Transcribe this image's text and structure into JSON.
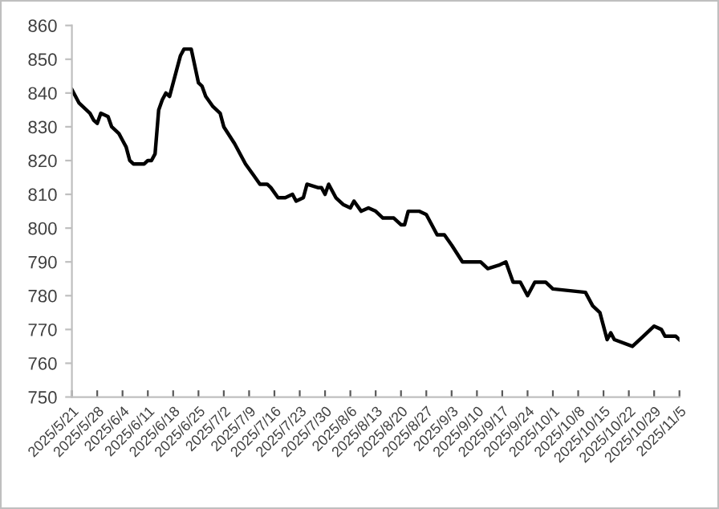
{
  "chart_data": {
    "type": "line",
    "grid": false,
    "marker": "none",
    "line_style": "solid",
    "x": [
      "2025-05-21",
      "2025-05-22",
      "2025-05-23",
      "2025-05-25",
      "2025-05-26",
      "2025-05-27",
      "2025-05-28",
      "2025-05-29",
      "2025-05-31",
      "2025-06-01",
      "2025-06-03",
      "2025-06-04",
      "2025-06-05",
      "2025-06-06",
      "2025-06-07",
      "2025-06-10",
      "2025-06-11",
      "2025-06-12",
      "2025-06-13",
      "2025-06-14",
      "2025-06-15",
      "2025-06-16",
      "2025-06-17",
      "2025-06-19",
      "2025-06-20",
      "2025-06-21",
      "2025-06-23",
      "2025-06-25",
      "2025-06-26",
      "2025-06-27",
      "2025-06-29",
      "2025-07-01",
      "2025-07-02",
      "2025-07-05",
      "2025-07-08",
      "2025-07-10",
      "2025-07-12",
      "2025-07-14",
      "2025-07-15",
      "2025-07-17",
      "2025-07-19",
      "2025-07-21",
      "2025-07-22",
      "2025-07-24",
      "2025-07-25",
      "2025-07-28",
      "2025-07-29",
      "2025-07-30",
      "2025-07-31",
      "2025-08-02",
      "2025-08-04",
      "2025-08-06",
      "2025-08-07",
      "2025-08-09",
      "2025-08-11",
      "2025-08-13",
      "2025-08-15",
      "2025-08-18",
      "2025-08-20",
      "2025-08-21",
      "2025-08-22",
      "2025-08-25",
      "2025-08-27",
      "2025-08-30",
      "2025-09-01",
      "2025-09-03",
      "2025-09-06",
      "2025-09-08",
      "2025-09-09",
      "2025-09-11",
      "2025-09-13",
      "2025-09-16",
      "2025-09-18",
      "2025-09-20",
      "2025-09-22",
      "2025-09-24",
      "2025-09-26",
      "2025-09-29",
      "2025-10-01",
      "2025-10-10",
      "2025-10-12",
      "2025-10-14",
      "2025-10-16",
      "2025-10-17",
      "2025-10-18",
      "2025-10-23",
      "2025-10-26",
      "2025-10-29",
      "2025-10-31",
      "2025-11-01",
      "2025-11-04",
      "2025-11-05"
    ],
    "series": [
      {
        "color": "#000000",
        "values": [
          841,
          839,
          837,
          835,
          834,
          832,
          831,
          834,
          833,
          830,
          828,
          826,
          824,
          820,
          819,
          819,
          820,
          820,
          822,
          835,
          838,
          840,
          839,
          847,
          851,
          853,
          853,
          843,
          842,
          839,
          836,
          834,
          830,
          825,
          819,
          816,
          813,
          813,
          812,
          809,
          809,
          810,
          808,
          809,
          813,
          812,
          812,
          810,
          813,
          809,
          807,
          806,
          808,
          805,
          806,
          805,
          803,
          803,
          801,
          801,
          805,
          805,
          804,
          798,
          798,
          795,
          790,
          790,
          790,
          790,
          788,
          789,
          790,
          784,
          784,
          780,
          784,
          784,
          782,
          781,
          777,
          775,
          767,
          769,
          767,
          765,
          768,
          771,
          770,
          768,
          768,
          767
        ]
      }
    ],
    "xlim": [
      "2025-05-21",
      "2025-11-05"
    ],
    "xticks": [
      {
        "value": "2025-05-21",
        "label": "2025/5/21"
      },
      {
        "value": "2025-05-28",
        "label": "2025/5/28"
      },
      {
        "value": "2025-06-04",
        "label": "2025/6/4"
      },
      {
        "value": "2025-06-11",
        "label": "2025/6/11"
      },
      {
        "value": "2025-06-18",
        "label": "2025/6/18"
      },
      {
        "value": "2025-06-25",
        "label": "2025/6/25"
      },
      {
        "value": "2025-07-02",
        "label": "2025/7/2"
      },
      {
        "value": "2025-07-09",
        "label": "2025/7/9"
      },
      {
        "value": "2025-07-16",
        "label": "2025/7/16"
      },
      {
        "value": "2025-07-23",
        "label": "2025/7/23"
      },
      {
        "value": "2025-07-30",
        "label": "2025/7/30"
      },
      {
        "value": "2025-08-06",
        "label": "2025/8/6"
      },
      {
        "value": "2025-08-13",
        "label": "2025/8/13"
      },
      {
        "value": "2025-08-20",
        "label": "2025/8/20"
      },
      {
        "value": "2025-08-27",
        "label": "2025/8/27"
      },
      {
        "value": "2025-09-03",
        "label": "2025/9/3"
      },
      {
        "value": "2025-09-10",
        "label": "2025/9/10"
      },
      {
        "value": "2025-09-17",
        "label": "2025/9/17"
      },
      {
        "value": "2025-09-24",
        "label": "2025/9/24"
      },
      {
        "value": "2025-10-01",
        "label": "2025/10/1"
      },
      {
        "value": "2025-10-08",
        "label": "2025/10/8"
      },
      {
        "value": "2025-10-15",
        "label": "2025/10/15"
      },
      {
        "value": "2025-10-22",
        "label": "2025/10/22"
      },
      {
        "value": "2025-10-29",
        "label": "2025/10/29"
      },
      {
        "value": "2025-11-05",
        "label": "2025/11/5"
      }
    ],
    "ylim": [
      750,
      860
    ],
    "yticks": [
      750,
      760,
      770,
      780,
      790,
      800,
      810,
      820,
      830,
      840,
      850,
      860
    ]
  }
}
